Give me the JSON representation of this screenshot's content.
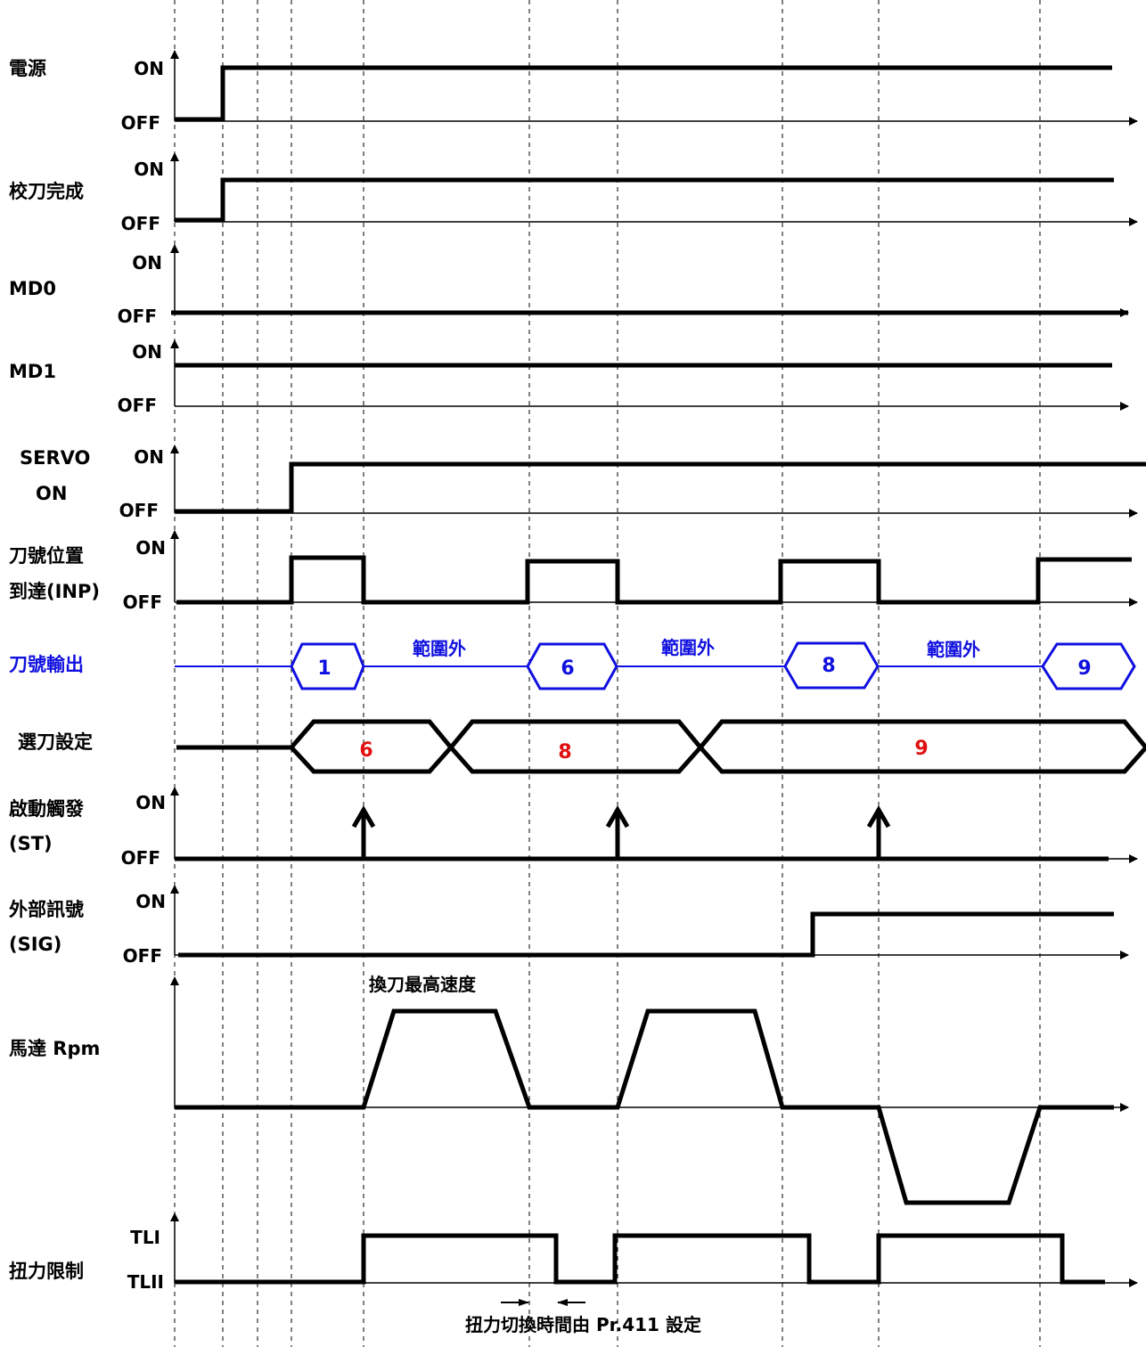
{
  "signals": {
    "power": "電源",
    "calibration_done": "校刀完成",
    "md0": "MD0",
    "md1": "MD1",
    "servo_on_line1": "SERVO",
    "servo_on_line2": "ON",
    "inp_line1": "刀號位置",
    "inp_line2": "到達(INP)",
    "tool_output": "刀號輸出",
    "tool_select": "選刀設定",
    "start_line1": "啟動觸發",
    "start_line2": "(ST)",
    "sig_line1": "外部訊號",
    "sig_line2": "(SIG)",
    "motor_rpm": "馬達 Rpm",
    "torque_limit": "扭力限制"
  },
  "levels": {
    "on": "ON",
    "off": "OFF",
    "tl1": "TLI",
    "tl2": "TLII"
  },
  "tool_output_values": [
    "1",
    "6",
    "8",
    "9"
  ],
  "out_of_range": "範圍外",
  "tool_select_values": [
    "6",
    "8",
    "9"
  ],
  "annotations": {
    "max_speed": "換刀最高速度",
    "torque_switch": "扭力切換時間由 Pr.411 設定"
  },
  "colors": {
    "line": "#000000",
    "tool_output": "#1010e0",
    "tool_select_value": "#e01010"
  }
}
